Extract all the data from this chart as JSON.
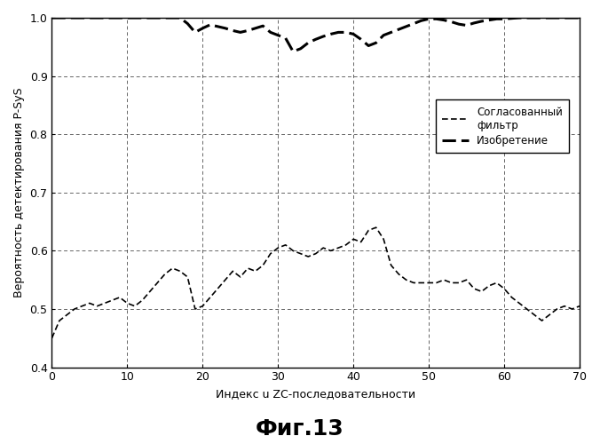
{
  "title": "Фиг.13",
  "xlabel": "Индекс u ZC-последовательности",
  "ylabel": "Вероятность детектирования P-SyS",
  "xlim": [
    0,
    70
  ],
  "ylim": [
    0.4,
    1.0
  ],
  "xticks": [
    0,
    10,
    20,
    30,
    40,
    50,
    60,
    70
  ],
  "yticks": [
    0.4,
    0.5,
    0.6,
    0.7,
    0.8,
    0.9,
    1.0
  ],
  "legend_label_filter": "Согласованный\nфильтр",
  "legend_label_invention": "Изобретение",
  "filter_x": [
    0,
    1,
    2,
    3,
    4,
    5,
    6,
    7,
    8,
    9,
    10,
    11,
    12,
    13,
    14,
    15,
    16,
    17,
    18,
    19,
    20,
    21,
    22,
    23,
    24,
    25,
    26,
    27,
    28,
    29,
    30,
    31,
    32,
    33,
    34,
    35,
    36,
    37,
    38,
    39,
    40,
    41,
    42,
    43,
    44,
    45,
    46,
    47,
    48,
    49,
    50,
    51,
    52,
    53,
    54,
    55,
    56,
    57,
    58,
    59,
    60,
    61,
    62,
    63,
    64,
    65,
    66,
    67,
    68,
    69,
    70
  ],
  "filter_y": [
    0.45,
    0.48,
    0.49,
    0.5,
    0.505,
    0.51,
    0.505,
    0.51,
    0.515,
    0.52,
    0.51,
    0.505,
    0.515,
    0.53,
    0.545,
    0.56,
    0.57,
    0.565,
    0.555,
    0.5,
    0.505,
    0.52,
    0.535,
    0.55,
    0.565,
    0.555,
    0.57,
    0.565,
    0.575,
    0.595,
    0.605,
    0.61,
    0.6,
    0.595,
    0.59,
    0.595,
    0.605,
    0.6,
    0.605,
    0.61,
    0.62,
    0.615,
    0.635,
    0.64,
    0.62,
    0.575,
    0.56,
    0.55,
    0.545,
    0.545,
    0.545,
    0.545,
    0.55,
    0.545,
    0.545,
    0.55,
    0.535,
    0.53,
    0.54,
    0.545,
    0.535,
    0.52,
    0.51,
    0.5,
    0.49,
    0.48,
    0.49,
    0.5,
    0.505,
    0.5,
    0.505
  ],
  "invention_x": [
    0,
    1,
    2,
    3,
    4,
    5,
    6,
    7,
    8,
    9,
    10,
    11,
    12,
    13,
    14,
    15,
    16,
    17,
    18,
    19,
    20,
    21,
    22,
    23,
    24,
    25,
    26,
    27,
    28,
    29,
    30,
    31,
    32,
    33,
    34,
    35,
    36,
    37,
    38,
    39,
    40,
    41,
    42,
    43,
    44,
    45,
    46,
    47,
    48,
    49,
    50,
    51,
    52,
    53,
    54,
    55,
    56,
    57,
    58,
    59,
    60,
    61,
    62,
    63,
    64,
    65,
    66,
    67,
    68,
    69,
    70
  ],
  "invention_y": [
    1.0,
    1.0,
    1.0,
    1.0,
    1.0,
    1.0,
    1.0,
    1.0,
    1.0,
    1.0,
    1.0,
    1.0,
    1.0,
    1.0,
    1.0,
    1.0,
    1.0,
    1.0,
    0.99,
    0.975,
    0.982,
    0.988,
    0.985,
    0.982,
    0.978,
    0.975,
    0.978,
    0.982,
    0.986,
    0.975,
    0.97,
    0.965,
    0.942,
    0.947,
    0.957,
    0.963,
    0.968,
    0.972,
    0.975,
    0.975,
    0.972,
    0.963,
    0.952,
    0.957,
    0.97,
    0.975,
    0.98,
    0.985,
    0.99,
    0.995,
    0.998,
    0.998,
    0.996,
    0.993,
    0.989,
    0.987,
    0.991,
    0.994,
    0.996,
    0.998,
    0.998,
    0.999,
    1.0,
    1.0,
    1.0,
    1.0,
    1.0,
    1.0,
    1.0,
    1.0,
    1.0
  ]
}
